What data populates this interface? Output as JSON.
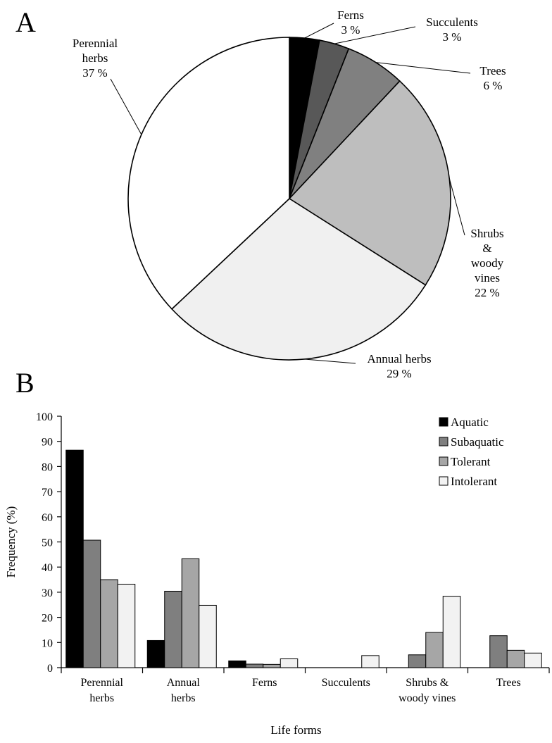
{
  "chart_data": [
    {
      "panel": "A",
      "type": "pie",
      "start": "12 o'clock, clockwise",
      "slices": [
        {
          "label": "Ferns",
          "label_lines": [
            "Ferns",
            "3 %"
          ],
          "value": 3,
          "color": "#000000"
        },
        {
          "label": "Succulents",
          "label_lines": [
            "Succulents",
            "3 %"
          ],
          "value": 3,
          "color": "#585858"
        },
        {
          "label": "Trees",
          "label_lines": [
            "Trees",
            "6 %"
          ],
          "value": 6,
          "color": "#808080"
        },
        {
          "label": "Shrubs & woody vines",
          "label_lines": [
            "Shrubs",
            "&",
            "woody",
            "vines",
            "22 %"
          ],
          "value": 22,
          "color": "#bebebe"
        },
        {
          "label": "Annual herbs",
          "label_lines": [
            "Annual herbs",
            "29 %"
          ],
          "value": 29,
          "color": "#f0f0f0"
        },
        {
          "label": "Perennial herbs",
          "label_lines": [
            "Perennial",
            "herbs",
            "37 %"
          ],
          "value": 37,
          "color": "#ffffff"
        }
      ]
    },
    {
      "panel": "B",
      "type": "bar",
      "categories": [
        [
          "Perennial",
          "herbs"
        ],
        [
          "Annual",
          "herbs"
        ],
        [
          "Ferns"
        ],
        [
          "Succulents"
        ],
        [
          "Shrubs &",
          "woody vines"
        ],
        [
          "Trees"
        ]
      ],
      "series": [
        {
          "name": "Aquatic",
          "color": "#000000",
          "values": [
            86.5,
            10.8,
            2.7,
            0,
            0,
            0
          ]
        },
        {
          "name": "Subaquatic",
          "color": "#7f7f7f",
          "values": [
            50.7,
            30.4,
            1.4,
            0,
            5.1,
            12.7
          ]
        },
        {
          "name": "Tolerant",
          "color": "#a6a6a6",
          "values": [
            35.0,
            43.3,
            1.3,
            0,
            14.0,
            6.9
          ]
        },
        {
          "name": "Intolerant",
          "color": "#f2f2f2",
          "values": [
            33.2,
            24.8,
            3.5,
            4.8,
            28.4,
            5.8
          ]
        }
      ],
      "ylabel": "Frequency (%)",
      "xlabel": "Life forms",
      "ylim": [
        0,
        100
      ],
      "yticks": [
        0,
        10,
        20,
        30,
        40,
        50,
        60,
        70,
        80,
        90,
        100
      ],
      "legend_position": "top-right",
      "grid": false
    }
  ]
}
